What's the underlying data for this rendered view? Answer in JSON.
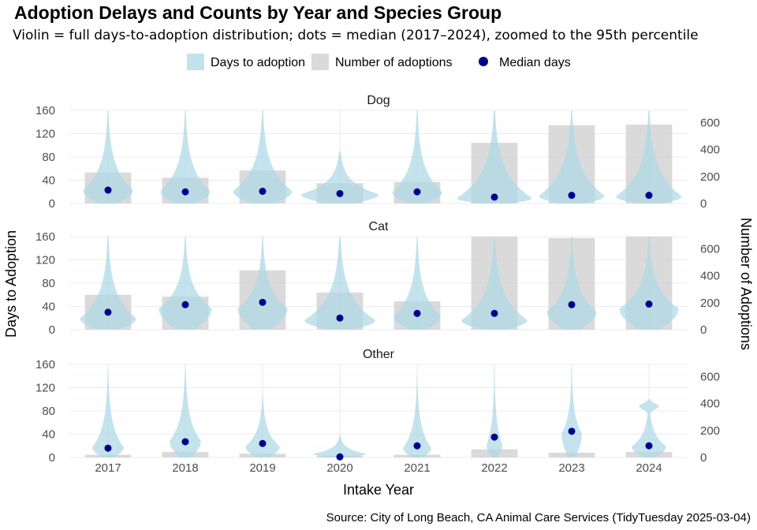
{
  "chart_data": {
    "type": "violin+bar",
    "title": "Adoption Delays and Counts by Year and Species Group",
    "subtitle": "Violin = full days-to-adoption distribution; dots = median (2017–2024), zoomed to the 95th percentile",
    "caption": "Source: City of Long Beach, CA Animal Care Services (TidyTuesday 2025-03-04)",
    "xlabel": "Intake Year",
    "ylabel": "Days to Adoption",
    "ylabel_right": "Number of Adoptions",
    "categories": [
      "2017",
      "2018",
      "2019",
      "2020",
      "2021",
      "2022",
      "2023",
      "2024"
    ],
    "ylim": [
      0,
      160
    ],
    "yticks": [
      0,
      40,
      80,
      120,
      160
    ],
    "ylim_right": [
      0,
      690
    ],
    "yticks_right": [
      0,
      200,
      400,
      600
    ],
    "legend": {
      "position": "top",
      "entries": [
        {
          "label": "Days to adoption",
          "color": "#add8e6"
        },
        {
          "label": "Number of adoptions",
          "color": "#d3d3d3"
        },
        {
          "label": "Median days",
          "color": "#00008b"
        }
      ]
    },
    "panels": [
      {
        "name": "Dog",
        "counts": [
          230,
          190,
          245,
          150,
          160,
          450,
          580,
          585
        ],
        "medians": [
          23,
          20,
          21,
          17,
          20,
          11,
          14,
          14
        ],
        "violins": [
          {
            "top": 160,
            "peak": 22,
            "halfwidth": 0.32
          },
          {
            "top": 160,
            "peak": 20,
            "halfwidth": 0.32
          },
          {
            "top": 160,
            "peak": 20,
            "halfwidth": 0.38
          },
          {
            "top": 90,
            "peak": 15,
            "halfwidth": 0.5
          },
          {
            "top": 160,
            "peak": 18,
            "halfwidth": 0.32
          },
          {
            "top": 160,
            "peak": 8,
            "halfwidth": 0.48
          },
          {
            "top": 160,
            "peak": 12,
            "halfwidth": 0.42
          },
          {
            "top": 160,
            "peak": 11,
            "halfwidth": 0.42
          }
        ]
      },
      {
        "name": "Cat",
        "counts": [
          258,
          245,
          440,
          275,
          210,
          690,
          680,
          690
        ],
        "medians": [
          30,
          43,
          47,
          20,
          28,
          28,
          43,
          44
        ],
        "violins": [
          {
            "top": 160,
            "peak": 18,
            "halfwidth": 0.36
          },
          {
            "top": 160,
            "peak": 35,
            "halfwidth": 0.34
          },
          {
            "top": 160,
            "peak": 35,
            "halfwidth": 0.32
          },
          {
            "top": 160,
            "peak": 15,
            "halfwidth": 0.45
          },
          {
            "top": 160,
            "peak": 22,
            "halfwidth": 0.3
          },
          {
            "top": 160,
            "peak": 15,
            "halfwidth": 0.42
          },
          {
            "top": 160,
            "peak": 30,
            "halfwidth": 0.32
          },
          {
            "top": 160,
            "peak": 35,
            "halfwidth": 0.38
          }
        ]
      },
      {
        "name": "Other",
        "counts": [
          20,
          40,
          28,
          12,
          20,
          60,
          35,
          40
        ],
        "medians": [
          16,
          27,
          24,
          1,
          20,
          35,
          45,
          20
        ],
        "violins": [
          {
            "top": 150,
            "peak": 16,
            "halfwidth": 0.2
          },
          {
            "top": 160,
            "peak": 27,
            "halfwidth": 0.2
          },
          {
            "top": 110,
            "peak": 18,
            "halfwidth": 0.22
          },
          {
            "top": 38,
            "peak": 6,
            "halfwidth": 0.34
          },
          {
            "top": 140,
            "peak": 15,
            "halfwidth": 0.18
          },
          {
            "top": 160,
            "peak": 20,
            "halfwidth": 0.1
          },
          {
            "top": 155,
            "peak": 40,
            "halfwidth": 0.13
          },
          {
            "top": 100,
            "peak": 18,
            "halfwidth": 0.22,
            "second_peak": 88
          }
        ]
      }
    ],
    "colors": {
      "violin": "#add8e6",
      "bar": "#d3d3d3",
      "median": "#00008b"
    }
  }
}
